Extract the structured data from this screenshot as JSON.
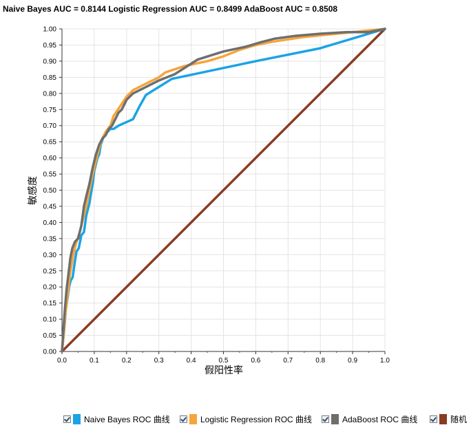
{
  "title": "Naive Bayes AUC = 0.8144 Logistic Regression AUC = 0.8499 AdaBoost AUC = 0.8508",
  "legend": [
    {
      "label": "Naive Bayes ROC 曲线",
      "color": "#1aa3e6",
      "checked": true
    },
    {
      "label": "Logistic Regression ROC 曲线",
      "color": "#f5a53a",
      "checked": true
    },
    {
      "label": "AdaBoost ROC 曲线",
      "color": "#6e6e6e",
      "checked": true
    },
    {
      "label": "随机",
      "color": "#8a3b22",
      "checked": true
    }
  ],
  "chart_data": {
    "type": "line",
    "title": "Naive Bayes AUC = 0.8144 Logistic Regression AUC = 0.8499 AdaBoost AUC = 0.8508",
    "xlabel": "假阳性率",
    "ylabel": "敏感度",
    "xlim": [
      0,
      1
    ],
    "ylim": [
      0,
      1
    ],
    "xticks": [
      "0.0",
      "0.1",
      "0.2",
      "0.3",
      "0.4",
      "0.5",
      "0.6",
      "0.7",
      "0.8",
      "0.9",
      "1.0"
    ],
    "yticks": [
      "0.00",
      "0.05",
      "0.10",
      "0.15",
      "0.20",
      "0.25",
      "0.30",
      "0.35",
      "0.40",
      "0.45",
      "0.50",
      "0.55",
      "0.60",
      "0.65",
      "0.70",
      "0.75",
      "0.80",
      "0.85",
      "0.90",
      "0.95",
      "1.00"
    ],
    "grid": true,
    "legend_position": "bottom",
    "series": [
      {
        "name": "Naive Bayes ROC 曲线",
        "color": "#1aa3e6",
        "x": [
          0,
          0.003,
          0.008,
          0.012,
          0.018,
          0.022,
          0.027,
          0.033,
          0.04,
          0.045,
          0.052,
          0.06,
          0.068,
          0.075,
          0.085,
          0.09,
          0.095,
          0.1,
          0.105,
          0.11,
          0.115,
          0.12,
          0.13,
          0.14,
          0.15,
          0.16,
          0.175,
          0.22,
          0.24,
          0.26,
          0.34,
          0.6,
          0.8,
          0.95,
          1
        ],
        "y": [
          0,
          0.03,
          0.08,
          0.13,
          0.17,
          0.2,
          0.22,
          0.23,
          0.28,
          0.31,
          0.32,
          0.36,
          0.37,
          0.42,
          0.46,
          0.49,
          0.52,
          0.56,
          0.58,
          0.6,
          0.61,
          0.64,
          0.67,
          0.68,
          0.69,
          0.69,
          0.7,
          0.72,
          0.76,
          0.795,
          0.845,
          0.9,
          0.94,
          0.985,
          1
        ]
      },
      {
        "name": "Logistic Regression ROC 曲线",
        "color": "#f5a53a",
        "x": [
          0,
          0.005,
          0.01,
          0.018,
          0.025,
          0.035,
          0.045,
          0.055,
          0.065,
          0.075,
          0.085,
          0.095,
          0.105,
          0.115,
          0.125,
          0.135,
          0.15,
          0.16,
          0.18,
          0.2,
          0.22,
          0.26,
          0.3,
          0.32,
          0.38,
          0.45,
          0.5,
          0.55,
          0.6,
          0.65,
          0.75,
          0.88,
          1
        ],
        "y": [
          0,
          0.05,
          0.11,
          0.18,
          0.24,
          0.3,
          0.34,
          0.37,
          0.41,
          0.45,
          0.5,
          0.55,
          0.59,
          0.63,
          0.66,
          0.68,
          0.7,
          0.73,
          0.76,
          0.79,
          0.81,
          0.83,
          0.85,
          0.865,
          0.885,
          0.9,
          0.915,
          0.935,
          0.95,
          0.96,
          0.975,
          0.988,
          1
        ]
      },
      {
        "name": "AdaBoost ROC 曲线",
        "color": "#6e6e6e",
        "x": [
          0,
          0.004,
          0.008,
          0.014,
          0.02,
          0.026,
          0.032,
          0.04,
          0.05,
          0.06,
          0.068,
          0.075,
          0.085,
          0.095,
          0.105,
          0.115,
          0.125,
          0.135,
          0.145,
          0.155,
          0.165,
          0.175,
          0.185,
          0.2,
          0.22,
          0.25,
          0.3,
          0.35,
          0.42,
          0.5,
          0.57,
          0.62,
          0.66,
          0.72,
          0.8,
          0.88,
          0.95,
          1
        ],
        "y": [
          0,
          0.06,
          0.12,
          0.19,
          0.24,
          0.29,
          0.32,
          0.34,
          0.35,
          0.39,
          0.45,
          0.48,
          0.52,
          0.57,
          0.61,
          0.64,
          0.66,
          0.67,
          0.69,
          0.7,
          0.72,
          0.74,
          0.75,
          0.78,
          0.8,
          0.815,
          0.84,
          0.86,
          0.905,
          0.93,
          0.945,
          0.96,
          0.97,
          0.978,
          0.985,
          0.99,
          0.99,
          1
        ]
      },
      {
        "name": "随机",
        "color": "#8a3b22",
        "x": [
          0,
          1
        ],
        "y": [
          0,
          1
        ]
      }
    ]
  }
}
